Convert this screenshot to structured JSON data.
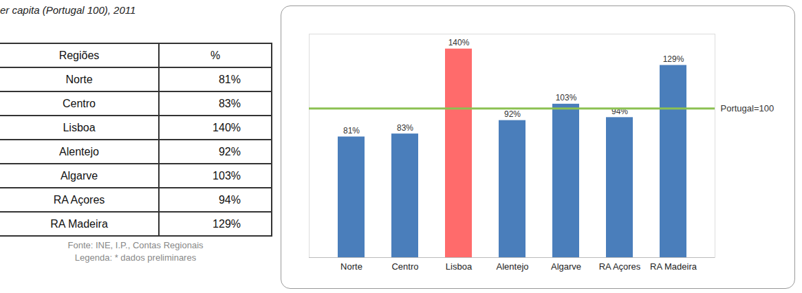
{
  "title": "er capita (Portugal 100), 2011",
  "table": {
    "header": [
      "Regiões",
      "%"
    ],
    "rows": [
      [
        "Norte",
        "81%"
      ],
      [
        "Centro",
        "83%"
      ],
      [
        "Lisboa",
        "140%"
      ],
      [
        "Alentejo",
        "92%"
      ],
      [
        "Algarve",
        "103%"
      ],
      [
        "RA Açores",
        "94%"
      ],
      [
        "RA Madeira",
        "129%"
      ]
    ],
    "caption": [
      "Fonte: INE, I.P., Contas Regionais",
      "Legenda: * dados preliminares"
    ]
  },
  "chart_data": {
    "type": "bar",
    "categories": [
      "Norte",
      "Centro",
      "Lisboa",
      "Alentejo",
      "Algarve",
      "RA Açores",
      "RA Madeira"
    ],
    "values": [
      81,
      83,
      140,
      92,
      103,
      94,
      129
    ],
    "value_labels": [
      "81%",
      "83%",
      "140%",
      "92%",
      "103%",
      "94%",
      "129%"
    ],
    "colors": [
      "#4a7ebb",
      "#4a7ebb",
      "#ff6b6b",
      "#4a7ebb",
      "#4a7ebb",
      "#4a7ebb",
      "#4a7ebb"
    ],
    "data_labels": true,
    "ylim": [
      0,
      150
    ],
    "yticks": [],
    "tick_labels": "x",
    "grid": false,
    "annotations": [
      {
        "y": 100,
        "text": "Portugal=100",
        "color": "#8cc152"
      }
    ]
  }
}
